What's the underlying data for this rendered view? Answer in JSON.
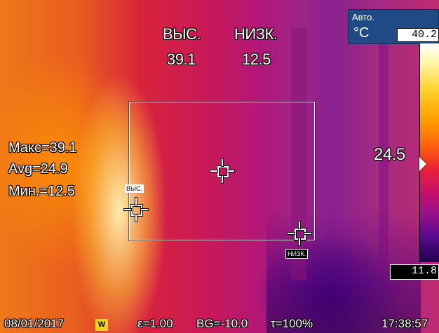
{
  "readout_top": {
    "high_label": "ВЫС.",
    "high_value": "39.1",
    "low_label": "НИЗК.",
    "low_value": "12.5"
  },
  "stats": {
    "max": "Макс=39.1",
    "avg": "Avg=24.9",
    "min": "Мин.=12.5"
  },
  "center_temp": "24.5",
  "markers": {
    "high_tag": "ВЫС.",
    "low_tag": "НИЗК."
  },
  "palette": {
    "mode": "Авто.",
    "unit": "°C",
    "max_value": "40.2",
    "min_value": "11.8",
    "caret_level_c": 24.5
  },
  "status": {
    "date": "08/01/2017",
    "white_balance_badge": "W",
    "emissivity": "ε=1.00",
    "background": "BG=-10.0",
    "transmission": "τ=100%",
    "time": "17:38:57"
  },
  "colors": {
    "palette_header": "#1f4a86",
    "badge_yellow": "#f5d21e"
  },
  "icons": [
    "crosshair-center-icon",
    "crosshair-high-icon",
    "crosshair-low-icon",
    "caret-right-icon"
  ]
}
